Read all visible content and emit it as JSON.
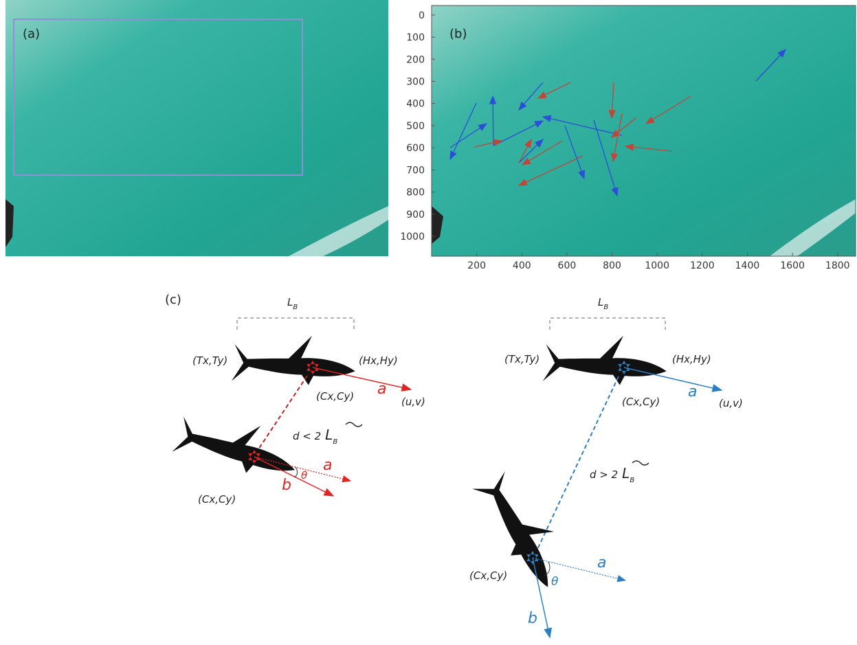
{
  "panels": {
    "a": {
      "label": "(a)"
    },
    "b": {
      "label": "(b)",
      "xlim": [
        0,
        1880
      ],
      "ylim": [
        -43,
        1090
      ],
      "y_inverted": true,
      "xticks": [
        200,
        400,
        600,
        800,
        1000,
        1200,
        1400,
        1600,
        1800
      ],
      "yticks": [
        0,
        100,
        200,
        300,
        400,
        500,
        600,
        700,
        800,
        900,
        1000
      ]
    }
  },
  "diagram": {
    "label": "(c)",
    "left": {
      "length_main": "L",
      "length_sub": "B",
      "tail": "(Tx,Ty)",
      "head": "(Hx,Hy)",
      "center": "(Cx,Cy)",
      "vector_a": "a",
      "velocity": "(u,v)",
      "distance_main": "d < 2",
      "distance_L": "L",
      "distance_sub": "B",
      "theta": "θ",
      "second_a": "a",
      "second_b": "b",
      "second_center": "(Cx,Cy)"
    },
    "right": {
      "length_main": "L",
      "length_sub": "B",
      "tail": "(Tx,Ty)",
      "head": "(Hx,Hy)",
      "center": "(Cx,Cy)",
      "vector_a": "a",
      "velocity": "(u,v)",
      "distance_main": "d > 2",
      "distance_L": "L",
      "distance_sub": "B",
      "theta": "θ",
      "second_a": "a",
      "second_b": "b",
      "second_center": "(Cx,Cy)"
    }
  }
}
